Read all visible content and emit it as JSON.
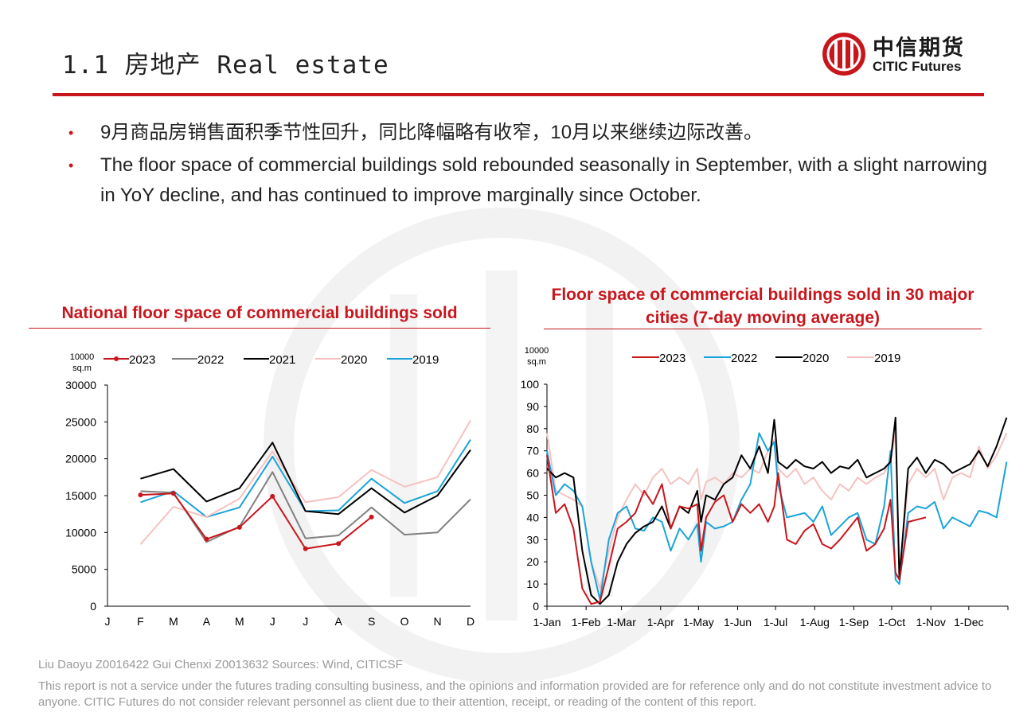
{
  "header": {
    "title": "1.1 房地产  Real estate",
    "logo_cn": "中信期货",
    "logo_en": "CITIC Futures"
  },
  "bullets": [
    "9月商品房销售面积季节性回升，同比降幅略有收窄，10月以来继续边际改善。",
    "The floor space of commercial buildings sold rebounded seasonally in September, with a slight narrowing in YoY decline, and has continued to improve marginally since October."
  ],
  "colors": {
    "accent": "#c8161d"
  },
  "chart_data": [
    {
      "type": "line",
      "title": "National floor space of commercial buildings sold",
      "unit": "10000 sq.m",
      "categories": [
        "J",
        "F",
        "M",
        "A",
        "M",
        "J",
        "J",
        "A",
        "S",
        "O",
        "N",
        "D"
      ],
      "ylim": [
        0,
        30000
      ],
      "yticks": [
        0,
        5000,
        10000,
        15000,
        20000,
        25000,
        30000
      ],
      "legend_position": "top",
      "series": [
        {
          "name": "2023",
          "color": "#c8161d",
          "markers": true,
          "values": [
            null,
            15100,
            15300,
            9100,
            10700,
            14900,
            7800,
            8500,
            12100,
            null,
            null,
            null
          ]
        },
        {
          "name": "2022",
          "color": "#808080",
          "markers": false,
          "values": [
            null,
            15600,
            15400,
            8700,
            10800,
            18200,
            9200,
            9600,
            13400,
            9700,
            10000,
            14500
          ]
        },
        {
          "name": "2021",
          "color": "#000000",
          "markers": false,
          "values": [
            null,
            17300,
            18600,
            14200,
            16000,
            22200,
            12900,
            12500,
            16000,
            12700,
            15000,
            21200
          ]
        },
        {
          "name": "2020",
          "color": "#f6c1c1",
          "markers": false,
          "values": [
            null,
            8400,
            13500,
            12100,
            14600,
            21000,
            14100,
            14800,
            18500,
            16200,
            17500,
            25200
          ]
        },
        {
          "name": "2019",
          "color": "#1aa3d8",
          "markers": false,
          "values": [
            null,
            14100,
            15600,
            12100,
            13400,
            20300,
            12900,
            13000,
            17300,
            14000,
            15600,
            22600
          ]
        }
      ]
    },
    {
      "type": "line",
      "title": "Floor space of commercial buildings sold in 30 major cities (7-day moving average)",
      "unit": "10000 sq.m",
      "x_ticks": [
        "1-Jan",
        "1-Feb",
        "1-Mar",
        "1-Apr",
        "1-May",
        "1-Jun",
        "1-Jul",
        "1-Aug",
        "1-Sep",
        "1-Oct",
        "1-Nov",
        "1-Dec"
      ],
      "ylim": [
        0,
        100
      ],
      "yticks": [
        0,
        10,
        20,
        30,
        40,
        50,
        60,
        70,
        80,
        90,
        100
      ],
      "legend_position": "top",
      "series": [
        {
          "name": "2023",
          "color": "#c8161d",
          "x": [
            "01-01",
            "01-08",
            "01-15",
            "01-22",
            "01-29",
            "02-05",
            "02-12",
            "02-19",
            "02-26",
            "03-05",
            "03-12",
            "03-19",
            "03-26",
            "04-02",
            "04-09",
            "04-16",
            "04-23",
            "04-30",
            "05-03",
            "05-07",
            "05-14",
            "05-21",
            "05-28",
            "06-04",
            "06-11",
            "06-18",
            "06-25",
            "06-30",
            "07-03",
            "07-10",
            "07-17",
            "07-24",
            "07-31",
            "08-07",
            "08-14",
            "08-21",
            "08-28",
            "09-04",
            "09-11",
            "09-18",
            "09-25",
            "09-30",
            "10-04",
            "10-07",
            "10-14",
            "10-21",
            "10-28"
          ],
          "values": [
            68,
            42,
            46,
            35,
            8,
            1,
            2,
            18,
            35,
            38,
            42,
            52,
            46,
            55,
            35,
            45,
            44,
            46,
            25,
            40,
            47,
            50,
            38,
            46,
            42,
            46,
            38,
            45,
            60,
            30,
            28,
            34,
            37,
            28,
            26,
            30,
            35,
            40,
            25,
            28,
            35,
            48,
            15,
            12,
            38,
            39,
            40
          ]
        },
        {
          "name": "2022",
          "color": "#1aa3d8",
          "x": [
            "01-01",
            "01-08",
            "01-15",
            "01-22",
            "01-29",
            "02-05",
            "02-12",
            "02-19",
            "02-26",
            "03-05",
            "03-12",
            "03-19",
            "03-26",
            "04-02",
            "04-09",
            "04-16",
            "04-23",
            "04-30",
            "05-03",
            "05-07",
            "05-14",
            "05-21",
            "05-28",
            "06-04",
            "06-11",
            "06-18",
            "06-25",
            "06-30",
            "07-03",
            "07-10",
            "07-17",
            "07-24",
            "07-31",
            "08-07",
            "08-14",
            "08-21",
            "08-28",
            "09-04",
            "09-11",
            "09-18",
            "09-25",
            "09-30",
            "10-04",
            "10-07",
            "10-14",
            "10-21",
            "10-28",
            "11-04",
            "11-11",
            "11-18",
            "11-25",
            "12-02",
            "12-09",
            "12-16",
            "12-23",
            "12-31"
          ],
          "values": [
            70,
            50,
            55,
            52,
            45,
            20,
            3,
            30,
            42,
            45,
            35,
            34,
            40,
            38,
            25,
            35,
            30,
            37,
            20,
            38,
            35,
            36,
            38,
            48,
            55,
            78,
            70,
            74,
            55,
            40,
            41,
            42,
            38,
            45,
            32,
            36,
            40,
            42,
            30,
            28,
            45,
            70,
            12,
            10,
            42,
            45,
            44,
            47,
            35,
            40,
            38,
            36,
            43,
            42,
            40,
            65
          ]
        },
        {
          "name": "2020",
          "color": "#000000",
          "x": [
            "01-01",
            "01-08",
            "01-15",
            "01-22",
            "01-29",
            "02-05",
            "02-12",
            "02-19",
            "02-26",
            "03-05",
            "03-12",
            "03-19",
            "03-26",
            "04-02",
            "04-09",
            "04-16",
            "04-23",
            "04-30",
            "05-03",
            "05-07",
            "05-14",
            "05-21",
            "05-28",
            "06-04",
            "06-11",
            "06-18",
            "06-25",
            "06-30",
            "07-03",
            "07-10",
            "07-17",
            "07-24",
            "07-31",
            "08-07",
            "08-14",
            "08-21",
            "08-28",
            "09-04",
            "09-11",
            "09-18",
            "09-25",
            "09-30",
            "10-04",
            "10-07",
            "10-14",
            "10-21",
            "10-28",
            "11-04",
            "11-11",
            "11-18",
            "11-25",
            "12-02",
            "12-09",
            "12-16",
            "12-23",
            "12-31"
          ],
          "values": [
            62,
            58,
            60,
            58,
            25,
            5,
            1,
            5,
            20,
            28,
            33,
            36,
            38,
            45,
            35,
            45,
            42,
            52,
            38,
            50,
            48,
            55,
            58,
            68,
            62,
            72,
            60,
            84,
            65,
            62,
            66,
            63,
            62,
            65,
            60,
            63,
            62,
            66,
            58,
            60,
            62,
            65,
            85,
            12,
            62,
            67,
            60,
            66,
            64,
            60,
            62,
            64,
            70,
            63,
            72,
            85
          ]
        },
        {
          "name": "2019",
          "color": "#f6c1c1",
          "x": [
            "01-01",
            "01-08",
            "01-15",
            "01-22",
            "01-29",
            "02-05",
            "02-12",
            "02-19",
            "02-26",
            "03-05",
            "03-12",
            "03-19",
            "03-26",
            "04-02",
            "04-09",
            "04-16",
            "04-23",
            "04-30",
            "05-03",
            "05-07",
            "05-14",
            "05-21",
            "05-28",
            "06-04",
            "06-11",
            "06-18",
            "06-25",
            "06-30",
            "07-03",
            "07-10",
            "07-17",
            "07-24",
            "07-31",
            "08-07",
            "08-14",
            "08-21",
            "08-28",
            "09-04",
            "09-11",
            "09-18",
            "09-25",
            "09-30",
            "10-04",
            "10-07",
            "10-14",
            "10-21",
            "10-28",
            "11-04",
            "11-11",
            "11-18",
            "11-25",
            "12-02",
            "12-09",
            "12-16",
            "12-23",
            "12-31"
          ],
          "values": [
            78,
            52,
            50,
            48,
            45,
            20,
            8,
            25,
            40,
            48,
            55,
            50,
            58,
            62,
            55,
            58,
            55,
            62,
            48,
            56,
            58,
            55,
            60,
            58,
            62,
            60,
            70,
            75,
            62,
            58,
            62,
            55,
            58,
            52,
            48,
            55,
            52,
            58,
            55,
            58,
            60,
            65,
            78,
            15,
            55,
            62,
            58,
            62,
            48,
            58,
            60,
            58,
            72,
            62,
            68,
            78
          ]
        }
      ]
    }
  ],
  "footer": {
    "source": "Liu Daoyu Z0016422  Gui Chenxi Z0013632     Sources: Wind, CITICSF",
    "disclaimer": "This report is not a service under the futures trading consulting business, and the opinions and information provided are for reference only and do not constitute investment advice to anyone. CITIC Futures do not consider relevant personnel as client due to their attention, receipt, or reading of the content of this report."
  }
}
